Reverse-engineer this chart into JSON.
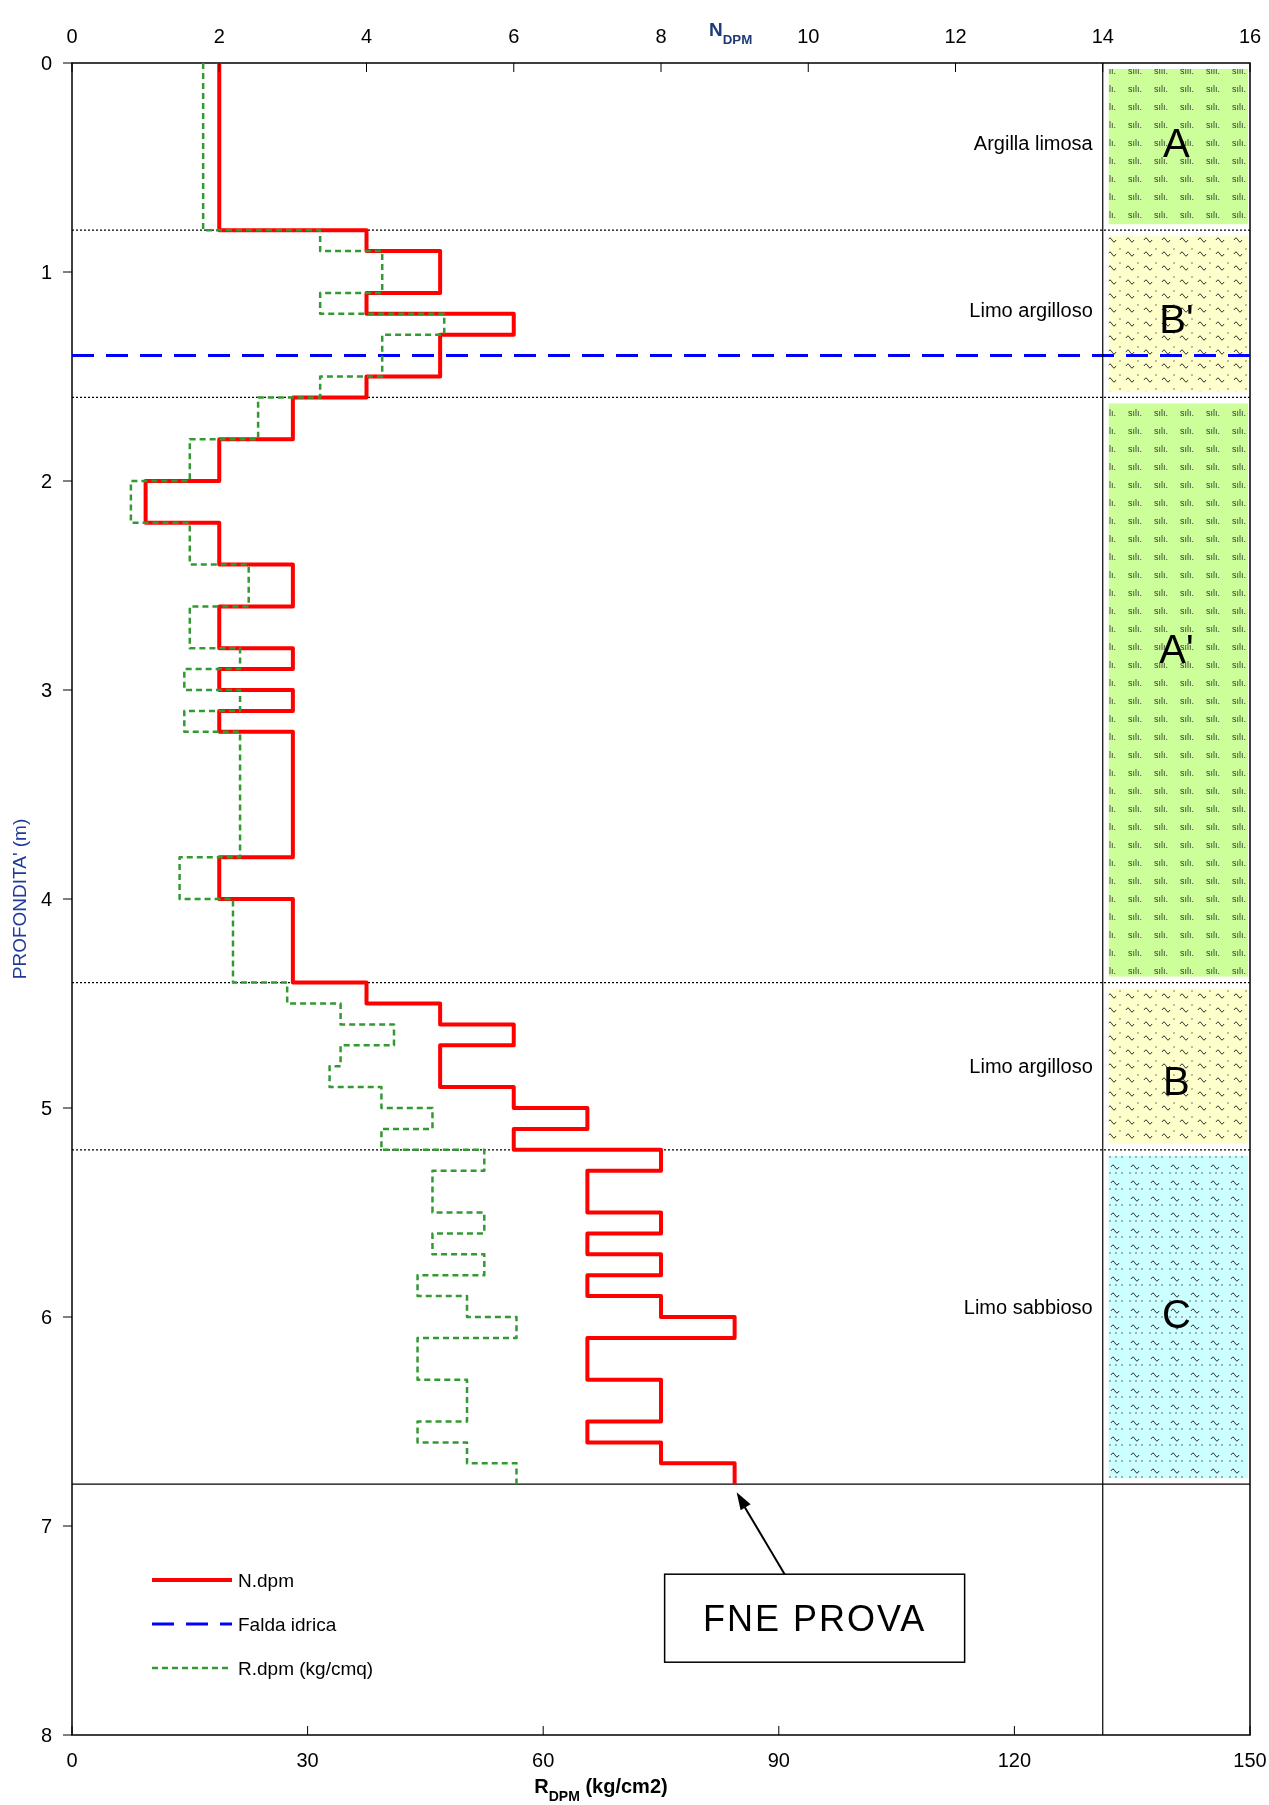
{
  "chart_data": {
    "type": "step",
    "orientation": "horizontal",
    "xlabel": "R$_{DPM}$ (kg/cm2)",
    "x2label": "N$_{DPM}$",
    "ylabel": "PROFONDITA' (m)",
    "xlim": [
      0,
      150
    ],
    "xticks": [
      0,
      30,
      60,
      90,
      120,
      150
    ],
    "x2lim": [
      0,
      16
    ],
    "x2ticks": [
      0,
      2,
      4,
      6,
      8,
      10,
      12,
      14,
      16
    ],
    "ylim": [
      8,
      0
    ],
    "yticks": [
      0,
      1,
      2,
      3,
      4,
      5,
      6,
      7,
      8
    ],
    "grid": false,
    "legend": "bottom left",
    "marker": "none",
    "series": [
      {
        "name": "N.dpm",
        "color": "#ff0000",
        "axis": "x2",
        "line_style": "solid",
        "x": [
          0,
          0.8,
          0.9,
          1.1,
          1.2,
          1.3,
          1.5,
          1.6,
          1.8,
          2.0,
          2.2,
          2.4,
          2.6,
          2.8,
          2.9,
          3.0,
          3.1,
          3.2,
          3.8,
          4.0,
          4.4,
          4.5,
          4.6,
          4.7,
          4.9,
          5.0,
          5.1,
          5.2,
          5.3,
          5.5,
          5.6,
          5.7,
          5.8,
          5.9,
          6.0,
          6.1,
          6.3,
          6.5,
          6.6,
          6.7,
          6.8
        ],
        "values": [
          2,
          4,
          5,
          4,
          6,
          5,
          4,
          3,
          2,
          1,
          2,
          3,
          2,
          3,
          2,
          3,
          2,
          3,
          2,
          3,
          4,
          5,
          6,
          5,
          6,
          7,
          6,
          8,
          7,
          8,
          7,
          8,
          7,
          8,
          9,
          7,
          8,
          7,
          8,
          9,
          9
        ]
      },
      {
        "name": "R.dpm (kg/cmq)",
        "color": "#339933",
        "line_style": "dashed",
        "x": [
          0,
          0.8,
          0.9,
          1.1,
          1.2,
          1.3,
          1.5,
          1.6,
          1.8,
          2.0,
          2.2,
          2.4,
          2.6,
          2.8,
          2.9,
          3.0,
          3.1,
          3.2,
          3.8,
          4.0,
          4.4,
          4.5,
          4.6,
          4.7,
          4.8,
          4.9,
          5.0,
          5.1,
          5.2,
          5.3,
          5.5,
          5.6,
          5.7,
          5.8,
          5.9,
          6.0,
          6.1,
          6.3,
          6.5,
          6.6,
          6.7,
          6.8
        ],
        "values": [
          16.7,
          31.6,
          39.5,
          31.6,
          47.4,
          39.5,
          31.6,
          23.7,
          15.0,
          7.5,
          15.0,
          22.5,
          15.0,
          21.4,
          14.3,
          21.4,
          14.3,
          21.4,
          13.7,
          20.5,
          27.4,
          34.2,
          41.0,
          34.2,
          32.8,
          39.4,
          45.9,
          39.4,
          52.5,
          45.9,
          52.5,
          45.9,
          52.5,
          44.0,
          50.3,
          56.6,
          44.0,
          50.3,
          44.0,
          50.3,
          56.6,
          56.6
        ]
      }
    ],
    "ref_lines": [
      {
        "axis": "y",
        "value": 1.4,
        "label": "Falda idrica",
        "color": "#0000ff",
        "line_style": "dashed"
      },
      {
        "axis": "y",
        "value": 0.8,
        "color": "#000000",
        "line_style": "dotted"
      },
      {
        "axis": "y",
        "value": 1.6,
        "color": "#000000",
        "line_style": "dotted"
      },
      {
        "axis": "y",
        "value": 4.4,
        "color": "#000000",
        "line_style": "dotted"
      },
      {
        "axis": "y",
        "value": 5.2,
        "color": "#000000",
        "line_style": "dotted"
      },
      {
        "axis": "y",
        "value": 6.8,
        "color": "#000000",
        "line_style": "solid"
      },
      {
        "axis": "x2",
        "value": 14,
        "color": "#000000",
        "line_style": "solid"
      }
    ],
    "annotations": [
      "Argilla limosa",
      "A",
      "Limo argilloso",
      "B'",
      "A'",
      "Limo argilloso",
      "B",
      "Limo sabbioso",
      "C",
      "FNE PROVA"
    ]
  }
}
